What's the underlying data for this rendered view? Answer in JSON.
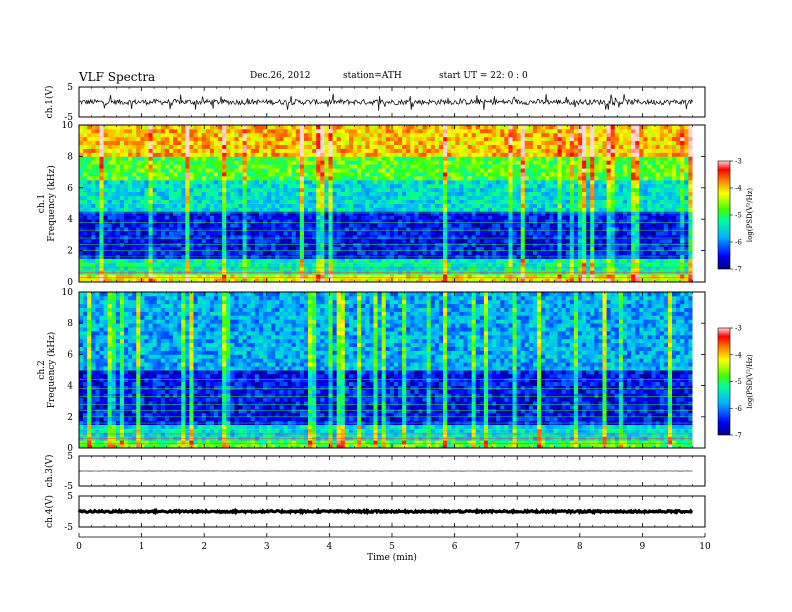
{
  "header": {
    "title": "VLF  Spectra",
    "date": "Dec.26, 2012",
    "station": "station=ATH",
    "start": "start  UT  =   22: 0  : 0"
  },
  "chart_data": [
    {
      "type": "line",
      "panel": "ch1-waveform",
      "ylabel": "ch.1(V)",
      "yticks": [
        "5",
        "-5"
      ],
      "ylim": [
        -5,
        5
      ],
      "xlim": [
        0,
        10
      ],
      "mean_level": 0,
      "noise_amplitude": 0.9,
      "end_time": 9.8
    },
    {
      "type": "heatmap",
      "panel": "ch1-spectrogram",
      "ylabel": "ch.1\nFrequency (kHz)",
      "yticks": [
        "0",
        "2",
        "4",
        "6",
        "8",
        "10"
      ],
      "ylim": [
        0,
        10
      ],
      "xlim": [
        0,
        10
      ],
      "end_time": 9.8,
      "colorbar": {
        "label": "log(PSD(V²/Hz)",
        "ticks": [
          "-3",
          "-4",
          "-5",
          "-6",
          "-7"
        ],
        "range": [
          -7,
          -3
        ]
      },
      "band_levels_log_psd": [
        {
          "freq_khz": [
            0,
            0.5
          ],
          "level": -4.2
        },
        {
          "freq_khz": [
            0.5,
            1.5
          ],
          "level": -5.3
        },
        {
          "freq_khz": [
            1.5,
            4.5
          ],
          "level": -6.5
        },
        {
          "freq_khz": [
            4.5,
            6.5
          ],
          "level": -5.5
        },
        {
          "freq_khz": [
            6.5,
            8
          ],
          "level": -4.8
        },
        {
          "freq_khz": [
            8,
            10
          ],
          "level": -4.0
        }
      ]
    },
    {
      "type": "heatmap",
      "panel": "ch2-spectrogram",
      "ylabel": "ch.2\nFrequency (kHz)",
      "yticks": [
        "0",
        "2",
        "4",
        "6",
        "8",
        "10"
      ],
      "ylim": [
        0,
        10
      ],
      "xlim": [
        0,
        10
      ],
      "end_time": 9.8,
      "colorbar": {
        "label": "log(PSD(V²/Hz)",
        "ticks": [
          "-3",
          "-4",
          "-5",
          "-6",
          "-7"
        ],
        "range": [
          -7,
          -3
        ]
      },
      "band_levels_log_psd": [
        {
          "freq_khz": [
            0,
            0.5
          ],
          "level": -4.8
        },
        {
          "freq_khz": [
            0.5,
            1.5
          ],
          "level": -5.5
        },
        {
          "freq_khz": [
            1.5,
            5
          ],
          "level": -6.5
        },
        {
          "freq_khz": [
            5,
            10
          ],
          "level": -5.8
        }
      ]
    },
    {
      "type": "line",
      "panel": "ch3-waveform",
      "ylabel": "ch.3(V)",
      "yticks": [
        "5",
        "-5"
      ],
      "ylim": [
        -5,
        5
      ],
      "xlim": [
        0,
        10
      ],
      "mean_level": 0,
      "noise_amplitude": 0.05,
      "end_time": 9.8
    },
    {
      "type": "line",
      "panel": "ch4-waveform",
      "ylabel": "ch.4(V)",
      "yticks": [
        "5",
        "-5"
      ],
      "ylim": [
        -5,
        5
      ],
      "xlim": [
        0,
        10
      ],
      "mean_level": 0,
      "noise_amplitude": 0.3,
      "end_time": 9.8,
      "xlabel": "Time  (min)",
      "xticks": [
        "0",
        "1",
        "2",
        "3",
        "4",
        "5",
        "6",
        "7",
        "8",
        "9",
        "10"
      ]
    }
  ]
}
